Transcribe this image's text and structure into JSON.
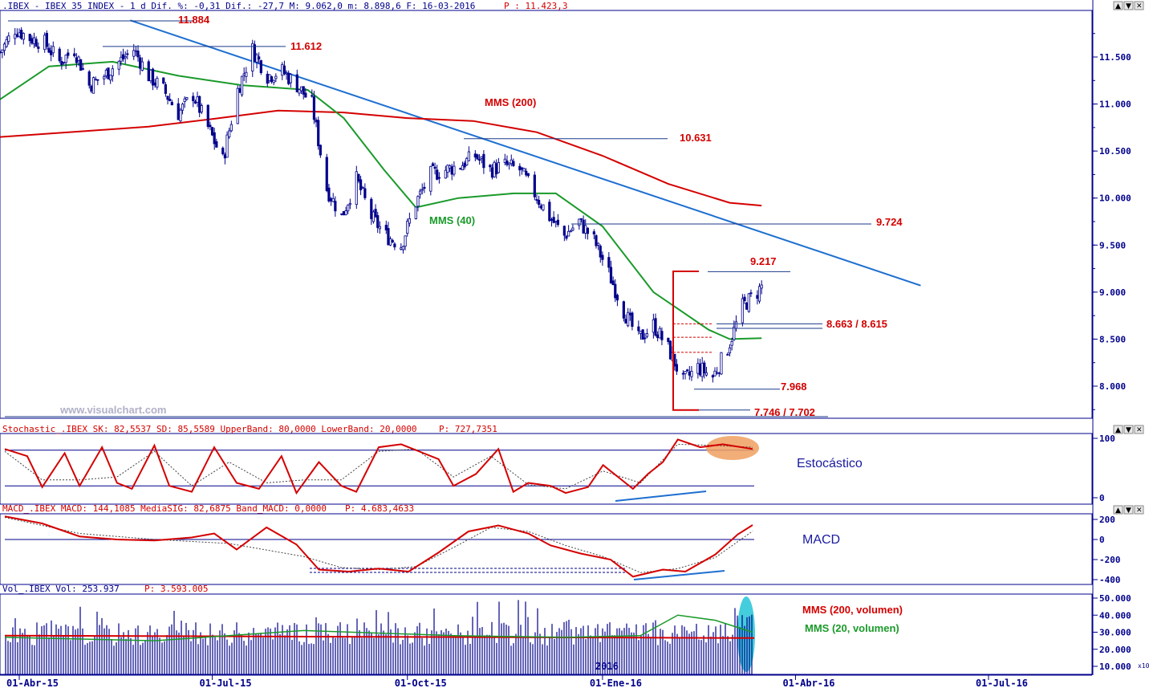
{
  "header": {
    "text": ".IBEX - IBEX 35 INDEX -  1 d Dif. %: -0,31 Dif.: -27,7 M: 9.062,0 m: 8.898,6 F: 16-03-2016",
    "p_label": "P : 11.423,3"
  },
  "watermark": "www.visualchart.com",
  "window_buttons": [
    "▲",
    "▼",
    "✕"
  ],
  "price_levels": {
    "l11884": "11.884",
    "l11612": "11.612",
    "l10631": "10.631",
    "l9724": "9.724",
    "l9217": "9.217",
    "l8663": "8.663 / 8.615",
    "l7968": "7.968",
    "l7746": "7.746 / 7.702"
  },
  "ma_labels": {
    "mms200": "MMS (200)",
    "mms40": "MMS (40)",
    "vol200": "MMS (200, volumen)",
    "vol20": "MMS (20, volumen)"
  },
  "annotations": {
    "stoch": "Estocástico",
    "macd": "MACD"
  },
  "stoch_header": {
    "text": "Stochastic_.IBEX SK: 82,5537 SD: 85,5589 UpperBand: 80,0000 LowerBand: 20,0000",
    "p_label": "P: 727,7351"
  },
  "macd_header": {
    "text": "MACD_.IBEX MACD: 144,1085 MediaSIG: 82,6875 Band_MACD: 0,0000",
    "p_label": "P: 4.683,4633"
  },
  "vol_header": {
    "text": "Vol_.IBEX Vol: 253.937",
    "p_label": "P: 3.593.005"
  },
  "year_label": "2016",
  "vol_multiplier": "x10",
  "x_dates": [
    "01-Abr-15",
    "01-Jul-15",
    "01-Oct-15",
    "01-Ene-16",
    "01-Abr-16",
    "01-Jul-16"
  ],
  "colors": {
    "price": "#00008b",
    "ma200": "#d40000",
    "ma40": "#1a9a2a",
    "trend": "#1e6fd0",
    "level": "#1a3a8a",
    "highlight_stoch": "#f0a060",
    "highlight_vol": "#30c8d8"
  },
  "chart_data": [
    {
      "type": "candlestick",
      "title": "IBEX 35 INDEX",
      "ylim": [
        7650,
        11950
      ],
      "yticks": [
        "11.500",
        "11.000",
        "10.500",
        "10.000",
        "9.500",
        "9.000",
        "8.500",
        "8.000"
      ],
      "xlim": [
        "2015-03-23",
        "2016-07-18"
      ],
      "key_levels": [
        11884,
        11612,
        10631,
        9724,
        9217,
        8663,
        8615,
        7968,
        7746,
        7702
      ],
      "close_path": [
        [
          "2015-03-23",
          11550
        ],
        [
          "2015-03-30",
          11800
        ],
        [
          "2015-04-06",
          11700
        ],
        [
          "2015-04-13",
          11650
        ],
        [
          "2015-04-20",
          11450
        ],
        [
          "2015-04-27",
          11580
        ],
        [
          "2015-05-04",
          11200
        ],
        [
          "2015-05-11",
          11300
        ],
        [
          "2015-05-18",
          11450
        ],
        [
          "2015-05-25",
          11580
        ],
        [
          "2015-06-01",
          11300
        ],
        [
          "2015-06-08",
          11150
        ],
        [
          "2015-06-15",
          10900
        ],
        [
          "2015-06-22",
          11100
        ],
        [
          "2015-06-29",
          10750
        ],
        [
          "2015-07-06",
          10400
        ],
        [
          "2015-07-13",
          11150
        ],
        [
          "2015-07-20",
          11580
        ],
        [
          "2015-07-27",
          11300
        ],
        [
          "2015-08-03",
          11350
        ],
        [
          "2015-08-10",
          11200
        ],
        [
          "2015-08-17",
          11000
        ],
        [
          "2015-08-24",
          10100
        ],
        [
          "2015-08-31",
          9800
        ],
        [
          "2015-09-07",
          10200
        ],
        [
          "2015-09-14",
          9800
        ],
        [
          "2015-09-21",
          9600
        ],
        [
          "2015-09-28",
          9500
        ],
        [
          "2015-10-05",
          9950
        ],
        [
          "2015-10-12",
          10250
        ],
        [
          "2015-10-19",
          10300
        ],
        [
          "2015-10-26",
          10350
        ],
        [
          "2015-11-02",
          10450
        ],
        [
          "2015-11-09",
          10300
        ],
        [
          "2015-11-16",
          10350
        ],
        [
          "2015-11-23",
          10300
        ],
        [
          "2015-11-30",
          10050
        ],
        [
          "2015-12-07",
          9800
        ],
        [
          "2015-12-14",
          9600
        ],
        [
          "2015-12-21",
          9750
        ],
        [
          "2015-12-28",
          9550
        ],
        [
          "2016-01-04",
          9200
        ],
        [
          "2016-01-11",
          8800
        ],
        [
          "2016-01-18",
          8500
        ],
        [
          "2016-01-25",
          8650
        ],
        [
          "2016-02-01",
          8400
        ],
        [
          "2016-02-08",
          8050
        ],
        [
          "2016-02-15",
          8200
        ],
        [
          "2016-02-22",
          8100
        ],
        [
          "2016-02-29",
          8400
        ],
        [
          "2016-03-07",
          8850
        ],
        [
          "2016-03-14",
          9000
        ],
        [
          "2016-03-16",
          9062
        ]
      ],
      "ma200": [
        [
          "2015-03-23",
          10650
        ],
        [
          "2015-05-01",
          10710
        ],
        [
          "2015-06-01",
          10760
        ],
        [
          "2015-07-01",
          10840
        ],
        [
          "2015-08-01",
          10930
        ],
        [
          "2015-09-01",
          10910
        ],
        [
          "2015-10-01",
          10850
        ],
        [
          "2015-11-01",
          10820
        ],
        [
          "2015-12-01",
          10700
        ],
        [
          "2016-01-01",
          10450
        ],
        [
          "2016-02-01",
          10150
        ],
        [
          "2016-03-01",
          9950
        ],
        [
          "2016-03-16",
          9920
        ]
      ],
      "ma40": [
        [
          "2015-03-23",
          11050
        ],
        [
          "2015-04-15",
          11400
        ],
        [
          "2015-05-15",
          11450
        ],
        [
          "2015-06-15",
          11300
        ],
        [
          "2015-07-15",
          11200
        ],
        [
          "2015-08-15",
          11150
        ],
        [
          "2015-09-01",
          10850
        ],
        [
          "2015-09-20",
          10300
        ],
        [
          "2015-10-05",
          9900
        ],
        [
          "2015-10-25",
          10000
        ],
        [
          "2015-11-20",
          10050
        ],
        [
          "2015-12-10",
          10050
        ],
        [
          "2016-01-01",
          9700
        ],
        [
          "2016-01-25",
          9000
        ],
        [
          "2016-02-20",
          8600
        ],
        [
          "2016-03-01",
          8500
        ],
        [
          "2016-03-16",
          8510
        ]
      ],
      "trendline": [
        [
          "2015-06-15",
          11830
        ],
        [
          "2016-05-30",
          9070
        ]
      ]
    },
    {
      "type": "line",
      "title": "Stochastic",
      "ylim": [
        0,
        100
      ],
      "yticks": [
        "100",
        "0"
      ],
      "bands": [
        80,
        20
      ],
      "series": [
        {
          "name": "SK",
          "points": [
            [
              0,
              82
            ],
            [
              0.03,
              70
            ],
            [
              0.05,
              18
            ],
            [
              0.08,
              75
            ],
            [
              0.1,
              20
            ],
            [
              0.13,
              85
            ],
            [
              0.15,
              25
            ],
            [
              0.17,
              15
            ],
            [
              0.2,
              88
            ],
            [
              0.22,
              20
            ],
            [
              0.25,
              10
            ],
            [
              0.28,
              85
            ],
            [
              0.31,
              25
            ],
            [
              0.34,
              15
            ],
            [
              0.37,
              70
            ],
            [
              0.39,
              8
            ],
            [
              0.42,
              60
            ],
            [
              0.45,
              20
            ],
            [
              0.47,
              10
            ],
            [
              0.5,
              85
            ],
            [
              0.53,
              90
            ],
            [
              0.56,
              75
            ],
            [
              0.58,
              65
            ],
            [
              0.6,
              20
            ],
            [
              0.63,
              40
            ],
            [
              0.66,
              82
            ],
            [
              0.68,
              10
            ],
            [
              0.7,
              25
            ],
            [
              0.73,
              20
            ],
            [
              0.75,
              8
            ],
            [
              0.78,
              18
            ],
            [
              0.8,
              55
            ],
            [
              0.82,
              35
            ],
            [
              0.84,
              15
            ],
            [
              0.86,
              40
            ],
            [
              0.88,
              60
            ],
            [
              0.9,
              98
            ],
            [
              0.93,
              85
            ],
            [
              0.96,
              90
            ],
            [
              1,
              82
            ]
          ]
        },
        {
          "name": "SD",
          "points": [
            [
              0,
              78
            ],
            [
              0.05,
              30
            ],
            [
              0.1,
              30
            ],
            [
              0.15,
              35
            ],
            [
              0.2,
              78
            ],
            [
              0.25,
              20
            ],
            [
              0.3,
              60
            ],
            [
              0.35,
              25
            ],
            [
              0.4,
              30
            ],
            [
              0.45,
              30
            ],
            [
              0.5,
              78
            ],
            [
              0.55,
              82
            ],
            [
              0.6,
              35
            ],
            [
              0.65,
              70
            ],
            [
              0.7,
              22
            ],
            [
              0.75,
              15
            ],
            [
              0.8,
              45
            ],
            [
              0.85,
              25
            ],
            [
              0.9,
              90
            ],
            [
              0.95,
              88
            ],
            [
              1,
              85
            ]
          ]
        }
      ]
    },
    {
      "type": "line",
      "title": "MACD",
      "ylim": [
        -450,
        250
      ],
      "yticks": [
        "200",
        "0",
        "-200",
        "-400"
      ],
      "series": [
        {
          "name": "MACD",
          "points": [
            [
              0,
              230
            ],
            [
              0.05,
              160
            ],
            [
              0.1,
              30
            ],
            [
              0.15,
              0
            ],
            [
              0.2,
              -10
            ],
            [
              0.25,
              20
            ],
            [
              0.28,
              60
            ],
            [
              0.31,
              -100
            ],
            [
              0.35,
              120
            ],
            [
              0.39,
              -50
            ],
            [
              0.42,
              -300
            ],
            [
              0.46,
              -320
            ],
            [
              0.5,
              -290
            ],
            [
              0.54,
              -320
            ],
            [
              0.58,
              -130
            ],
            [
              0.62,
              80
            ],
            [
              0.66,
              140
            ],
            [
              0.7,
              60
            ],
            [
              0.73,
              -60
            ],
            [
              0.77,
              -140
            ],
            [
              0.81,
              -200
            ],
            [
              0.84,
              -370
            ],
            [
              0.88,
              -300
            ],
            [
              0.91,
              -320
            ],
            [
              0.95,
              -150
            ],
            [
              0.98,
              50
            ],
            [
              1,
              144
            ]
          ]
        },
        {
          "name": "MediaSIG",
          "points": [
            [
              0,
              220
            ],
            [
              0.1,
              60
            ],
            [
              0.2,
              0
            ],
            [
              0.3,
              -40
            ],
            [
              0.4,
              -170
            ],
            [
              0.45,
              -280
            ],
            [
              0.5,
              -300
            ],
            [
              0.55,
              -270
            ],
            [
              0.6,
              -80
            ],
            [
              0.65,
              120
            ],
            [
              0.7,
              80
            ],
            [
              0.75,
              -60
            ],
            [
              0.8,
              -170
            ],
            [
              0.85,
              -330
            ],
            [
              0.9,
              -290
            ],
            [
              0.95,
              -180
            ],
            [
              1,
              83
            ]
          ]
        }
      ]
    },
    {
      "type": "bar",
      "title": "Volume",
      "ylim": [
        0,
        52
      ],
      "yticks": [
        "50.000",
        "40.000",
        "30.000",
        "20.000",
        "10.000"
      ],
      "unit": "x10",
      "ma200_level": 28,
      "ma20": [
        [
          0,
          27
        ],
        [
          0.2,
          25
        ],
        [
          0.4,
          31
        ],
        [
          0.6,
          28
        ],
        [
          0.75,
          27
        ],
        [
          0.85,
          28
        ],
        [
          0.9,
          40
        ],
        [
          0.95,
          37
        ],
        [
          1,
          30
        ]
      ],
      "bars_note": "daily volume bars, peak ~51 in Mar-16"
    }
  ]
}
